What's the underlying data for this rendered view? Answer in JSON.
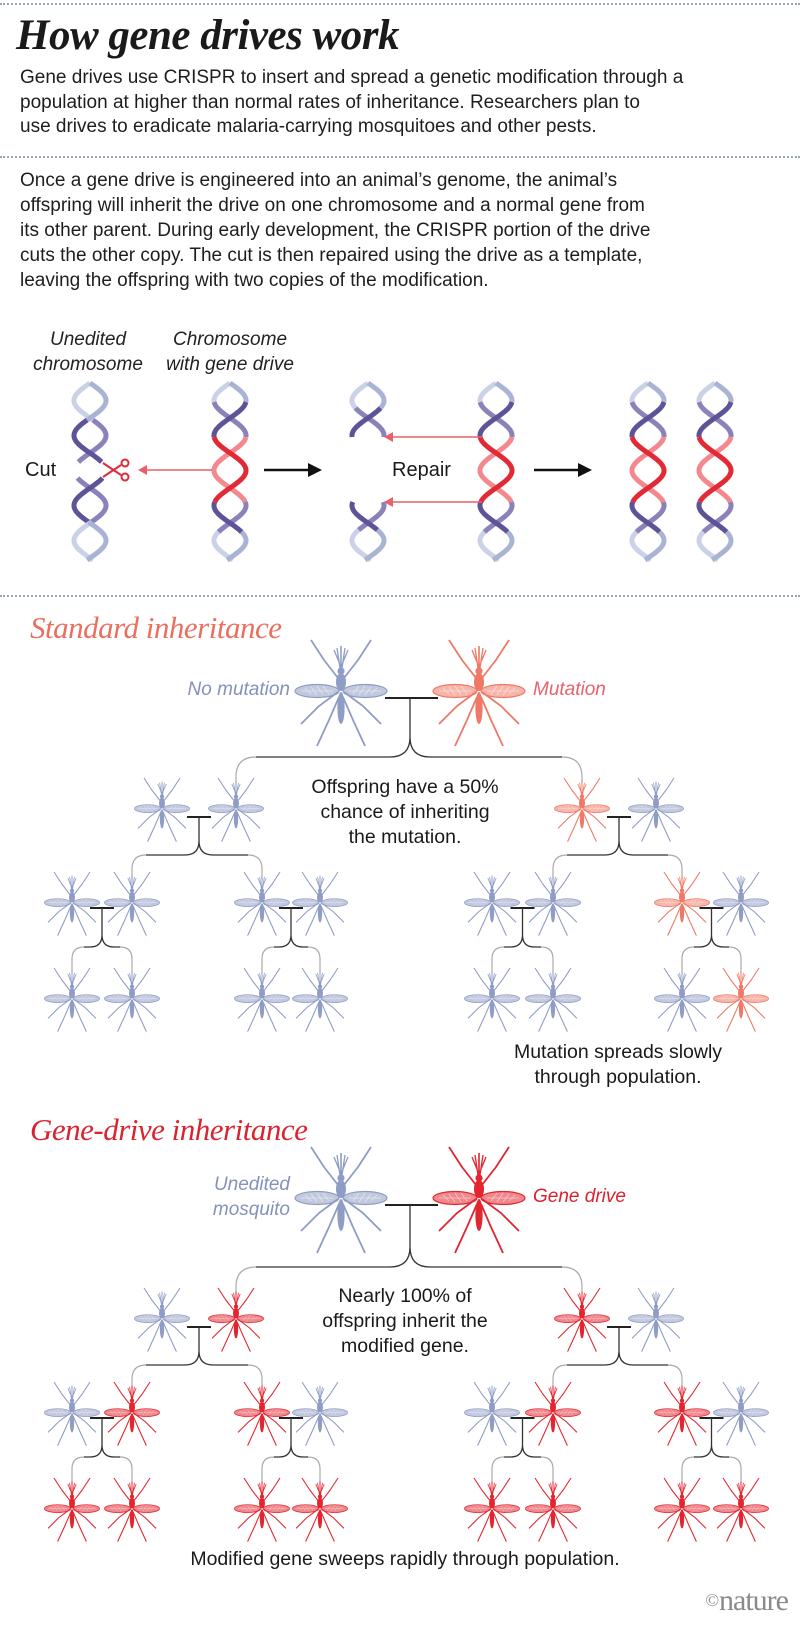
{
  "title": "How gene drives work",
  "intro": [
    "Gene drives use CRISPR to insert and spread a genetic modification through a",
    "population at higher than normal rates of inheritance. Researchers plan to",
    "use drives to eradicate malaria-carrying mosquitoes and other pests."
  ],
  "mechanism": {
    "text": [
      "Once a gene drive is engineered into an animal’s genome, the animal’s",
      "offspring will inherit the drive on one chromosome and a normal gene from",
      "its other parent. During early development, the CRISPR portion of the drive",
      "cuts the other copy. The cut is then repaired using the drive as a template,",
      "leaving the offspring with two copies of the modification."
    ],
    "label_unedited": [
      "Unedited",
      "chromosome"
    ],
    "label_drive": [
      "Chromosome",
      "with gene drive"
    ],
    "cut_label": "Cut",
    "repair_label": "Repair",
    "icons": [
      "scissors-icon",
      "arrow-right-icon",
      "arrow-left-icon"
    ]
  },
  "standard": {
    "heading": "Standard inheritance",
    "parent_left_label": [
      "No mutation"
    ],
    "parent_right_label": [
      "Mutation"
    ],
    "note": [
      "Offspring have a 50%",
      "chance of inheriting",
      "the mutation."
    ],
    "result": [
      "Mutation spreads slowly",
      "through population."
    ],
    "generations": [
      [
        "normal",
        "mutation"
      ],
      [
        "normal",
        "normal",
        "mutation",
        "normal"
      ],
      [
        "normal",
        "normal",
        "normal",
        "normal",
        "normal",
        "normal",
        "mutation",
        "normal"
      ],
      [
        "normal",
        "normal",
        "normal",
        "normal",
        "normal",
        "normal",
        "normal",
        "mutation"
      ]
    ]
  },
  "gene_drive": {
    "heading": "Gene-drive inheritance",
    "parent_left_label": [
      "Unedited",
      "mosquito"
    ],
    "parent_right_label": [
      "Gene drive"
    ],
    "note": [
      "Nearly 100% of",
      "offspring inherit the",
      "modified gene."
    ],
    "result": [
      "Modified gene sweeps rapidly through population."
    ],
    "generations": [
      [
        "normal",
        "drive"
      ],
      [
        "normal",
        "drive",
        "drive",
        "normal"
      ],
      [
        "normal",
        "drive",
        "drive",
        "normal",
        "normal",
        "drive",
        "drive",
        "normal"
      ],
      [
        "drive",
        "drive",
        "drive",
        "drive",
        "drive",
        "drive",
        "drive",
        "drive"
      ]
    ]
  },
  "credit": {
    "symbol": "©",
    "name": "nature"
  },
  "colors": {
    "normal": "#8f9cc5",
    "mutation": "#ef7866",
    "drive": "#e2252f",
    "standard_heading": "#e9705f",
    "drive_heading": "#d9232e",
    "normal_label": "#8591bd",
    "mutation_label": "#e8616c",
    "dna_light": [
      "#a9b4d4",
      "#cbd2e7"
    ],
    "dna_dark": [
      "#5d5397",
      "#8b82ba"
    ],
    "dna_red": [
      "#e22a36",
      "#f3888e"
    ],
    "repair_arrow": "#e8616a"
  }
}
